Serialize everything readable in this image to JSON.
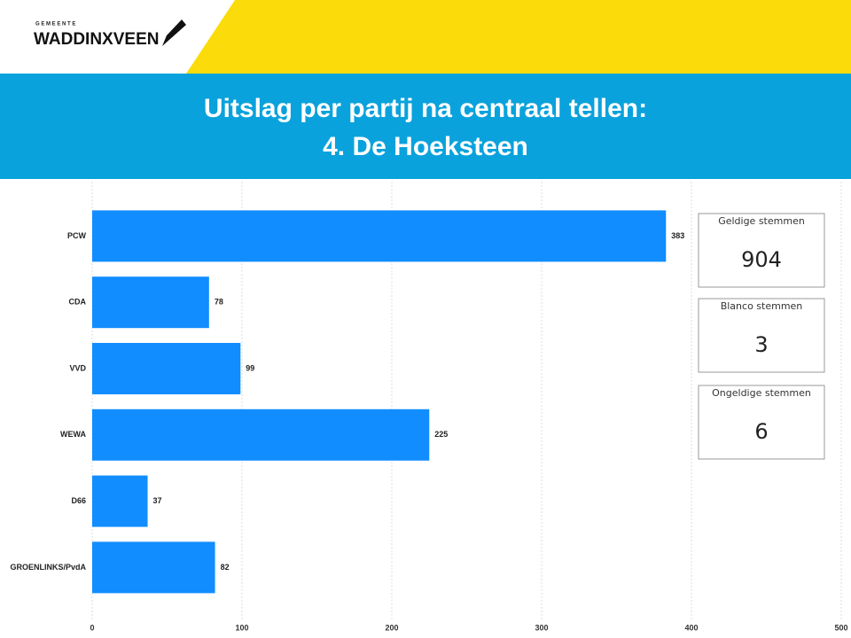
{
  "header": {
    "logo_top": "G E M E E N T E",
    "logo_name": "WADDINXVEEN"
  },
  "chart_data": {
    "type": "bar",
    "orientation": "horizontal",
    "title": "Uitslag per partij na centraal tellen:",
    "subtitle": "4. De Hoeksteen",
    "categories": [
      "PCW",
      "CDA",
      "VVD",
      "WEWA",
      "D66",
      "GROENLINKS/PvdA"
    ],
    "values": [
      383,
      78,
      99,
      225,
      37,
      82
    ],
    "color": "#118dff",
    "xlim": [
      0,
      500
    ],
    "xticks": [
      0,
      100,
      200,
      300,
      400,
      500
    ],
    "grid": true
  },
  "cards": [
    {
      "label": "Geldige stemmen",
      "value": "904"
    },
    {
      "label": "Blanco stemmen",
      "value": "3"
    },
    {
      "label": "Ongeldige stemmen",
      "value": "6"
    }
  ]
}
